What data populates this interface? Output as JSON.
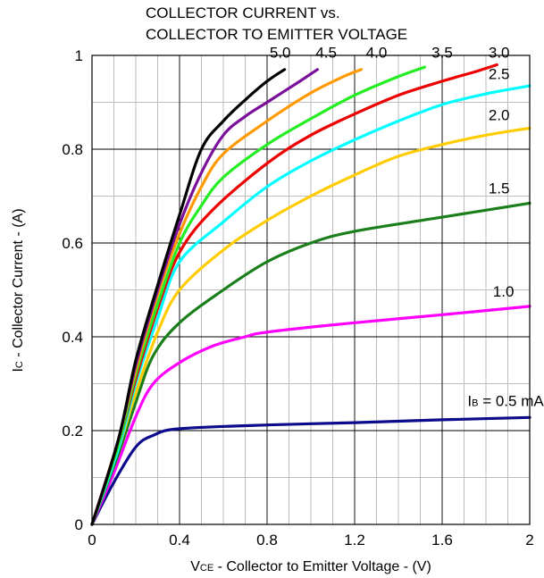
{
  "chart_data": {
    "type": "line",
    "title_line1": "COLLECTOR CURRENT vs.",
    "title_line2": "COLLECTOR TO EMITTER VOLTAGE",
    "xlabel_main": "V",
    "xlabel_sub": "CE",
    "xlabel_rest": " - Collector to Emitter Voltage - (V)",
    "ylabel_main": "I",
    "ylabel_sub": "C",
    "ylabel_rest": " - Collector Current - (A)",
    "xlim": [
      0,
      2
    ],
    "ylim": [
      0,
      1
    ],
    "grid": true,
    "x_ticks": [
      0,
      0.4,
      0.8,
      1.2,
      1.6,
      2
    ],
    "x_tick_labels": [
      "0",
      "0.4",
      "0.8",
      "1.2",
      "1.6",
      "2"
    ],
    "y_ticks": [
      0,
      0.2,
      0.4,
      0.6,
      0.8,
      1
    ],
    "y_tick_labels": [
      "0",
      "0.2",
      "0.4",
      "0.6",
      "0.8",
      "1"
    ],
    "ib_label_main": "I",
    "ib_label_sub": "B",
    "series": [
      {
        "label": " = 0.5 mA",
        "color": "#0b0b8c",
        "points": [
          [
            0,
            0
          ],
          [
            0.1,
            0.09
          ],
          [
            0.2,
            0.165
          ],
          [
            0.28,
            0.19
          ],
          [
            0.4,
            0.204
          ],
          [
            0.8,
            0.212
          ],
          [
            1.2,
            0.217
          ],
          [
            1.6,
            0.223
          ],
          [
            2,
            0.228
          ]
        ]
      },
      {
        "label": "1.0",
        "color": "#ff00ff",
        "points": [
          [
            0,
            0
          ],
          [
            0.1,
            0.11
          ],
          [
            0.2,
            0.23
          ],
          [
            0.28,
            0.3
          ],
          [
            0.4,
            0.345
          ],
          [
            0.55,
            0.38
          ],
          [
            0.7,
            0.4
          ],
          [
            0.8,
            0.41
          ],
          [
            1.2,
            0.43
          ],
          [
            1.6,
            0.447
          ],
          [
            2,
            0.465
          ]
        ]
      },
      {
        "label": "1.5",
        "color": "#1a7f1a",
        "points": [
          [
            0,
            0
          ],
          [
            0.12,
            0.15
          ],
          [
            0.2,
            0.26
          ],
          [
            0.28,
            0.36
          ],
          [
            0.4,
            0.43
          ],
          [
            0.6,
            0.5
          ],
          [
            0.8,
            0.56
          ],
          [
            1.0,
            0.6
          ],
          [
            1.2,
            0.625
          ],
          [
            1.6,
            0.655
          ],
          [
            2,
            0.685
          ]
        ]
      },
      {
        "label": "2.0",
        "color": "#ffcc00",
        "points": [
          [
            0,
            0
          ],
          [
            0.12,
            0.16
          ],
          [
            0.2,
            0.28
          ],
          [
            0.3,
            0.41
          ],
          [
            0.4,
            0.5
          ],
          [
            0.6,
            0.585
          ],
          [
            0.8,
            0.648
          ],
          [
            1.0,
            0.7
          ],
          [
            1.2,
            0.745
          ],
          [
            1.4,
            0.785
          ],
          [
            1.6,
            0.81
          ],
          [
            1.8,
            0.83
          ],
          [
            2,
            0.845
          ]
        ]
      },
      {
        "label": "2.5",
        "color": "#00ffff",
        "points": [
          [
            0,
            0
          ],
          [
            0.12,
            0.16
          ],
          [
            0.2,
            0.3
          ],
          [
            0.3,
            0.44
          ],
          [
            0.4,
            0.56
          ],
          [
            0.6,
            0.645
          ],
          [
            0.8,
            0.72
          ],
          [
            1.0,
            0.775
          ],
          [
            1.2,
            0.82
          ],
          [
            1.4,
            0.86
          ],
          [
            1.6,
            0.895
          ],
          [
            1.8,
            0.918
          ],
          [
            2,
            0.935
          ]
        ]
      },
      {
        "label": "3.0",
        "color": "#ee0000",
        "points": [
          [
            0,
            0
          ],
          [
            0.12,
            0.17
          ],
          [
            0.2,
            0.31
          ],
          [
            0.3,
            0.46
          ],
          [
            0.4,
            0.58
          ],
          [
            0.55,
            0.67
          ],
          [
            0.8,
            0.77
          ],
          [
            1.0,
            0.83
          ],
          [
            1.2,
            0.875
          ],
          [
            1.4,
            0.915
          ],
          [
            1.6,
            0.945
          ],
          [
            1.75,
            0.965
          ],
          [
            1.85,
            0.98
          ]
        ]
      },
      {
        "label": "3.5",
        "color": "#22ee22",
        "points": [
          [
            0,
            0
          ],
          [
            0.12,
            0.17
          ],
          [
            0.2,
            0.32
          ],
          [
            0.3,
            0.47
          ],
          [
            0.4,
            0.6
          ],
          [
            0.5,
            0.68
          ],
          [
            0.6,
            0.74
          ],
          [
            0.8,
            0.81
          ],
          [
            1.0,
            0.865
          ],
          [
            1.2,
            0.915
          ],
          [
            1.4,
            0.955
          ],
          [
            1.52,
            0.975
          ]
        ]
      },
      {
        "label": "4.0",
        "color": "#ff9900",
        "points": [
          [
            0,
            0
          ],
          [
            0.12,
            0.18
          ],
          [
            0.2,
            0.33
          ],
          [
            0.3,
            0.49
          ],
          [
            0.4,
            0.62
          ],
          [
            0.5,
            0.72
          ],
          [
            0.6,
            0.79
          ],
          [
            0.8,
            0.86
          ],
          [
            1.0,
            0.92
          ],
          [
            1.15,
            0.955
          ],
          [
            1.23,
            0.97
          ]
        ]
      },
      {
        "label": "4.5",
        "color": "#7a0f9a",
        "points": [
          [
            0,
            0
          ],
          [
            0.12,
            0.18
          ],
          [
            0.2,
            0.34
          ],
          [
            0.3,
            0.5
          ],
          [
            0.4,
            0.64
          ],
          [
            0.5,
            0.75
          ],
          [
            0.6,
            0.83
          ],
          [
            0.7,
            0.87
          ],
          [
            0.8,
            0.9
          ],
          [
            0.95,
            0.945
          ],
          [
            1.03,
            0.97
          ]
        ]
      },
      {
        "label": "5.0",
        "color": "#000000",
        "points": [
          [
            0,
            0
          ],
          [
            0.12,
            0.18
          ],
          [
            0.2,
            0.35
          ],
          [
            0.3,
            0.51
          ],
          [
            0.4,
            0.66
          ],
          [
            0.5,
            0.8
          ],
          [
            0.6,
            0.86
          ],
          [
            0.7,
            0.905
          ],
          [
            0.8,
            0.945
          ],
          [
            0.88,
            0.97
          ]
        ]
      }
    ]
  }
}
